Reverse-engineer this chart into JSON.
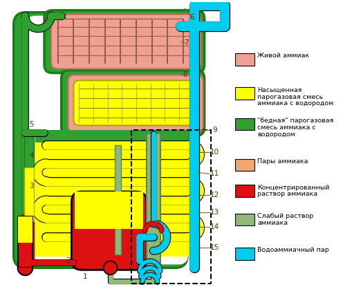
{
  "bg_color": "#ffffff",
  "c_pink": "#f0a090",
  "c_yellow": "#ffff00",
  "c_green": "#30a030",
  "c_dkgreen": "#1a7a1a",
  "c_orange": "#f0a870",
  "c_red": "#dd1111",
  "c_lgn": "#90b878",
  "c_blue": "#00ccee",
  "c_brown": "#8b6914",
  "legend_items": [
    {
      "color": "#f0a090",
      "label": "Живой аммиак",
      "lines": 1
    },
    {
      "color": "#ffff00",
      "label": "Насыщенная\nпарогазовая смесь\nаммиака с водородом",
      "lines": 3
    },
    {
      "color": "#30a030",
      "label": "\"бедная\" парогазовая\nсмесь аммиака с\nводородом",
      "lines": 3
    },
    {
      "color": "#f0a870",
      "label": "Пары аммиака",
      "lines": 1
    },
    {
      "color": "#dd1111",
      "label": "Концентрированный\nраствор аммиака",
      "lines": 2
    },
    {
      "color": "#90b878",
      "label": "Слабый раствор\nаммиака",
      "lines": 2
    },
    {
      "color": "#00ccee",
      "label": "Водоаммиачный пар",
      "lines": 1
    }
  ]
}
